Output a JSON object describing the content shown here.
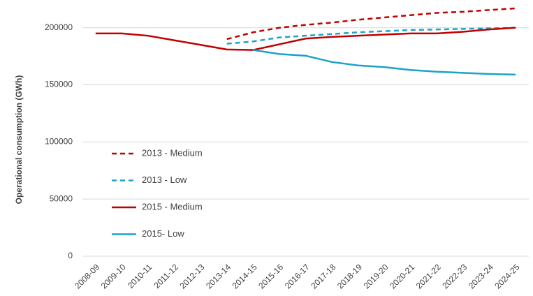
{
  "chart_data": {
    "type": "line",
    "y_label": "Operational consumption (GWh)",
    "categories": [
      "2008-09",
      "2009-10",
      "2010-11",
      "2011-12",
      "2012-13",
      "2013-14",
      "2014-15",
      "2015-16",
      "2016-17",
      "2017-18",
      "2018-19",
      "2019-20",
      "2020-21",
      "2021-22",
      "2022-23",
      "2023-24",
      "2024-25"
    ],
    "series": [
      {
        "name": "2013 - Medium",
        "color": "#c00000",
        "line_style": "dashed",
        "values": [
          null,
          null,
          null,
          null,
          null,
          190000,
          196000,
          200000,
          202500,
          204500,
          207000,
          209000,
          211000,
          213000,
          214000,
          215500,
          217000
        ]
      },
      {
        "name": "2013 - Low",
        "color": "#1ba3c6",
        "line_style": "dashed",
        "values": [
          null,
          null,
          null,
          null,
          null,
          186000,
          188000,
          191500,
          193000,
          194500,
          196000,
          197000,
          198000,
          198500,
          199000,
          199500,
          200000
        ]
      },
      {
        "name": "2015 - Medium",
        "color": "#c00000",
        "line_style": "solid",
        "values": [
          195000,
          195000,
          193000,
          189000,
          185000,
          181000,
          180500,
          185500,
          190500,
          192000,
          193000,
          194000,
          195000,
          195000,
          196500,
          198500,
          200000
        ]
      },
      {
        "name": "2015- Low",
        "color": "#1ba3c6",
        "line_style": "solid",
        "values": [
          null,
          null,
          null,
          null,
          null,
          null,
          180500,
          177000,
          175500,
          170000,
          167000,
          165500,
          163000,
          161500,
          160500,
          159500,
          159000
        ]
      }
    ],
    "ylim": [
      0,
      220000
    ],
    "yticks": [
      0,
      50000,
      100000,
      150000,
      200000
    ],
    "grid": true,
    "legend": "left"
  }
}
